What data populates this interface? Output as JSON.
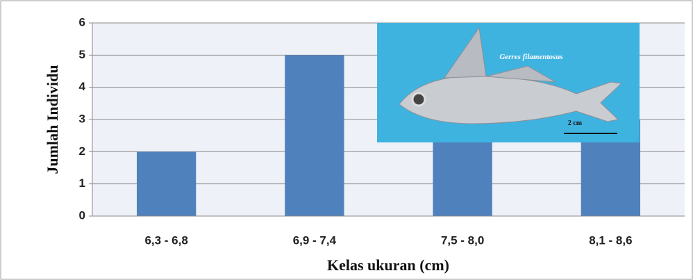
{
  "chart_data": {
    "type": "bar",
    "categories": [
      "6,3 - 6,8",
      "6,9 - 7,4",
      "7,5 - 8,0",
      "8,1 - 8,6"
    ],
    "values": [
      2,
      5,
      4,
      3
    ],
    "color": "#4f81bd",
    "ylim": [
      0,
      6
    ],
    "yticks": [
      0,
      1,
      2,
      3,
      4,
      5,
      6
    ],
    "grid": true,
    "y_label": "Jumlah Individu",
    "x_label": "Kelas ukuran (cm)",
    "image_caption": "Gerres filamentosus",
    "scale_label": "2 cm"
  }
}
